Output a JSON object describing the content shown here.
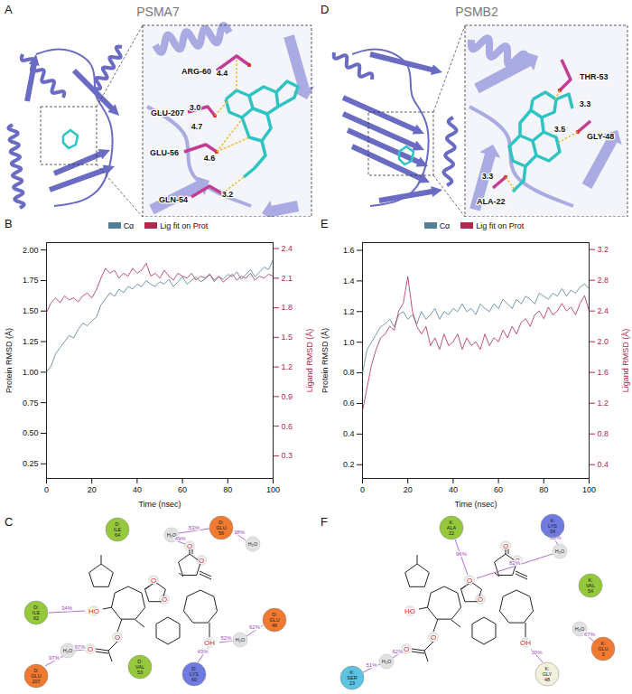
{
  "chart_data": [
    {
      "panel": "B",
      "type": "line",
      "legend": "top",
      "grid": false,
      "xlabel": "Time (nsec)",
      "ylabel": "Protein RMSD (Å)",
      "y2label": "Ligand RMSD (Å)",
      "xlim": [
        0,
        100
      ],
      "xticks": [
        0,
        20,
        40,
        60,
        80,
        100
      ],
      "ylim": [
        0.13,
        2.06
      ],
      "yticks": [
        0.25,
        {
          "value": 0.5,
          "label": "0.50"
        },
        0.75,
        {
          "value": 1,
          "label": "1.00"
        },
        1.25,
        {
          "value": 1.5,
          "label": "1.50"
        },
        1.75,
        {
          "value": 2,
          "label": "2.00"
        }
      ],
      "y2lim": [
        0.07,
        2.46
      ],
      "y2ticks": [
        0.3,
        0.6,
        0.9,
        1.2,
        1.5,
        1.8,
        2.1,
        2.4
      ],
      "x": [
        0,
        2,
        4,
        6,
        8,
        10,
        12,
        14,
        16,
        18,
        20,
        22,
        24,
        26,
        28,
        30,
        32,
        34,
        36,
        38,
        40,
        42,
        44,
        46,
        48,
        50,
        52,
        54,
        56,
        58,
        60,
        62,
        64,
        66,
        68,
        70,
        72,
        74,
        76,
        78,
        80,
        82,
        84,
        86,
        88,
        90,
        92,
        94,
        96,
        98,
        100
      ],
      "series": [
        {
          "name": "Cα",
          "color": "#4f8096",
          "values": [
            1.0,
            1.05,
            1.15,
            1.2,
            1.25,
            1.3,
            1.28,
            1.35,
            1.4,
            1.38,
            1.42,
            1.45,
            1.55,
            1.6,
            1.65,
            1.62,
            1.68,
            1.65,
            1.7,
            1.68,
            1.72,
            1.7,
            1.75,
            1.72,
            1.7,
            1.74,
            1.72,
            1.76,
            1.7,
            1.74,
            1.78,
            1.72,
            1.75,
            1.78,
            1.74,
            1.76,
            1.8,
            1.74,
            1.78,
            1.76,
            1.8,
            1.78,
            1.82,
            1.76,
            1.8,
            1.84,
            1.78,
            1.82,
            1.86,
            1.84,
            1.92
          ]
        },
        {
          "name": "Lig fit on Prot",
          "color": "#b2284f",
          "axis": "y2",
          "values": [
            1.75,
            1.85,
            1.9,
            1.85,
            1.92,
            1.88,
            1.9,
            1.86,
            1.92,
            1.95,
            1.9,
            1.98,
            2.1,
            2.2,
            2.15,
            2.18,
            2.1,
            2.15,
            2.12,
            2.2,
            2.15,
            2.18,
            2.25,
            2.12,
            2.15,
            2.1,
            2.18,
            2.12,
            2.08,
            2.15,
            2.12,
            2.1,
            2.15,
            2.08,
            2.12,
            2.1,
            2.14,
            2.08,
            2.12,
            2.06,
            2.1,
            2.14,
            2.08,
            2.12,
            2.1,
            2.15,
            2.08,
            2.12,
            2.1,
            2.14,
            2.12
          ]
        }
      ]
    },
    {
      "panel": "E",
      "type": "line",
      "legend": "top",
      "grid": false,
      "xlabel": "Time (nsec)",
      "ylabel": "Protein RMSD (Å)",
      "y2label": "Ligand RMSD (Å)",
      "xlim": [
        0,
        100
      ],
      "xticks": [
        0,
        20,
        40,
        60,
        80,
        100
      ],
      "ylim": [
        0.11,
        1.65
      ],
      "yticks": [
        0.2,
        0.4,
        0.6,
        0.8,
        {
          "value": 1,
          "label": "1.0"
        },
        1.2,
        1.4,
        1.6
      ],
      "y2lim": [
        0.22,
        3.29
      ],
      "y2ticks": [
        0.4,
        0.8,
        1.2,
        1.6,
        {
          "value": 2,
          "label": "2.0"
        },
        2.4,
        2.8,
        3.2
      ],
      "x": [
        0,
        2,
        4,
        6,
        8,
        10,
        12,
        14,
        16,
        18,
        20,
        22,
        24,
        26,
        28,
        30,
        32,
        34,
        36,
        38,
        40,
        42,
        44,
        46,
        48,
        50,
        52,
        54,
        56,
        58,
        60,
        62,
        64,
        66,
        68,
        70,
        72,
        74,
        76,
        78,
        80,
        82,
        84,
        86,
        88,
        90,
        92,
        94,
        96,
        98,
        100
      ],
      "series": [
        {
          "name": "Cα",
          "color": "#4f8096",
          "values": [
            0.8,
            0.95,
            1.0,
            1.05,
            1.1,
            1.12,
            1.15,
            1.1,
            1.18,
            1.2,
            1.15,
            1.18,
            1.12,
            1.2,
            1.15,
            1.18,
            1.22,
            1.15,
            1.2,
            1.18,
            1.22,
            1.2,
            1.25,
            1.2,
            1.22,
            1.18,
            1.25,
            1.22,
            1.2,
            1.25,
            1.22,
            1.28,
            1.25,
            1.22,
            1.28,
            1.25,
            1.3,
            1.28,
            1.25,
            1.32,
            1.3,
            1.28,
            1.32,
            1.3,
            1.35,
            1.3,
            1.34,
            1.32,
            1.36,
            1.38,
            1.35
          ]
        },
        {
          "name": "Lig fit on Prot",
          "color": "#b2284f",
          "axis": "y2",
          "values": [
            1.1,
            1.4,
            1.7,
            1.9,
            2.05,
            2.1,
            2.2,
            2.15,
            2.4,
            2.5,
            2.85,
            2.4,
            2.2,
            2.1,
            2.2,
            1.95,
            2.05,
            1.9,
            2.1,
            1.95,
            2.0,
            2.1,
            1.9,
            2.05,
            1.95,
            2.0,
            1.9,
            2.1,
            1.95,
            2.05,
            2.0,
            2.15,
            2.05,
            2.2,
            2.1,
            2.25,
            2.3,
            2.2,
            2.35,
            2.4,
            2.3,
            2.45,
            2.35,
            2.4,
            2.5,
            2.4,
            2.45,
            2.35,
            2.5,
            2.6,
            2.4
          ]
        }
      ]
    }
  ],
  "structures": [
    {
      "panel": "A",
      "title": "PSMA7",
      "residues": [
        "ARG-60",
        "GLU-207",
        "GLU-56",
        "GLN-54"
      ],
      "distances": [
        "3.0",
        "4.4",
        "4.7",
        "4.6",
        "3.2"
      ]
    },
    {
      "panel": "D",
      "title": "PSMB2",
      "residues": [
        "THR-53",
        "GLY-48",
        "ALA-22"
      ],
      "distances": [
        "3.3",
        "3.5",
        "3.3"
      ]
    }
  ],
  "interaction_maps": [
    {
      "panel": "C",
      "residues": [
        {
          "label": [
            "D:",
            "ILE",
            "64"
          ],
          "color": "#96c83c"
        },
        {
          "label": [
            "D:",
            "GLU",
            "56"
          ],
          "color": "#f07a30"
        },
        {
          "label": [
            "D:",
            "ILE",
            "62"
          ],
          "color": "#96c83c"
        },
        {
          "label": [
            "D:",
            "VAL",
            "53"
          ],
          "color": "#96c83c"
        },
        {
          "label": [
            "D:",
            "LYS",
            "60"
          ],
          "color": "#6f7be0"
        },
        {
          "label": [
            "D:",
            "GLU",
            "207"
          ],
          "color": "#f07a30"
        },
        {
          "label": [
            "D:",
            "GLU",
            "46"
          ],
          "color": "#f07a30"
        }
      ],
      "waters": [
        "H₂O",
        "H₂O",
        "H₂O",
        "H₂O"
      ],
      "atoms": [
        "O",
        "O",
        "O",
        "O",
        "HO",
        "O",
        "O",
        "OH"
      ],
      "percentages": [
        "53%",
        "49%",
        "38%",
        "34%",
        "97%",
        "97%",
        "43%",
        "52%",
        "62%"
      ]
    },
    {
      "panel": "F",
      "residues": [
        {
          "label": [
            "K:",
            "ALA",
            "22"
          ],
          "color": "#96c83c"
        },
        {
          "label": [
            "K:",
            "LYS",
            "34"
          ],
          "color": "#6f7be0"
        },
        {
          "label": [
            "K:",
            "VAL",
            "54"
          ],
          "color": "#96c83c"
        },
        {
          "label": [
            "K:",
            "SER",
            "23"
          ],
          "color": "#5cc3e2"
        },
        {
          "label": [
            "K:",
            "GLY",
            "48"
          ],
          "color": "#f2f0dc"
        },
        {
          "label": [
            "K:",
            "GLU",
            "3"
          ],
          "color": "#f07a30"
        }
      ],
      "waters": [
        "H₂O",
        "H₂O",
        "H₂O"
      ],
      "atoms": [
        "O",
        "O",
        "O",
        "O",
        "HO",
        "O",
        "O",
        "OH"
      ],
      "percentages": [
        "96%",
        "82%",
        "82%",
        "51%",
        "62%",
        "30%",
        "67%"
      ]
    }
  ]
}
